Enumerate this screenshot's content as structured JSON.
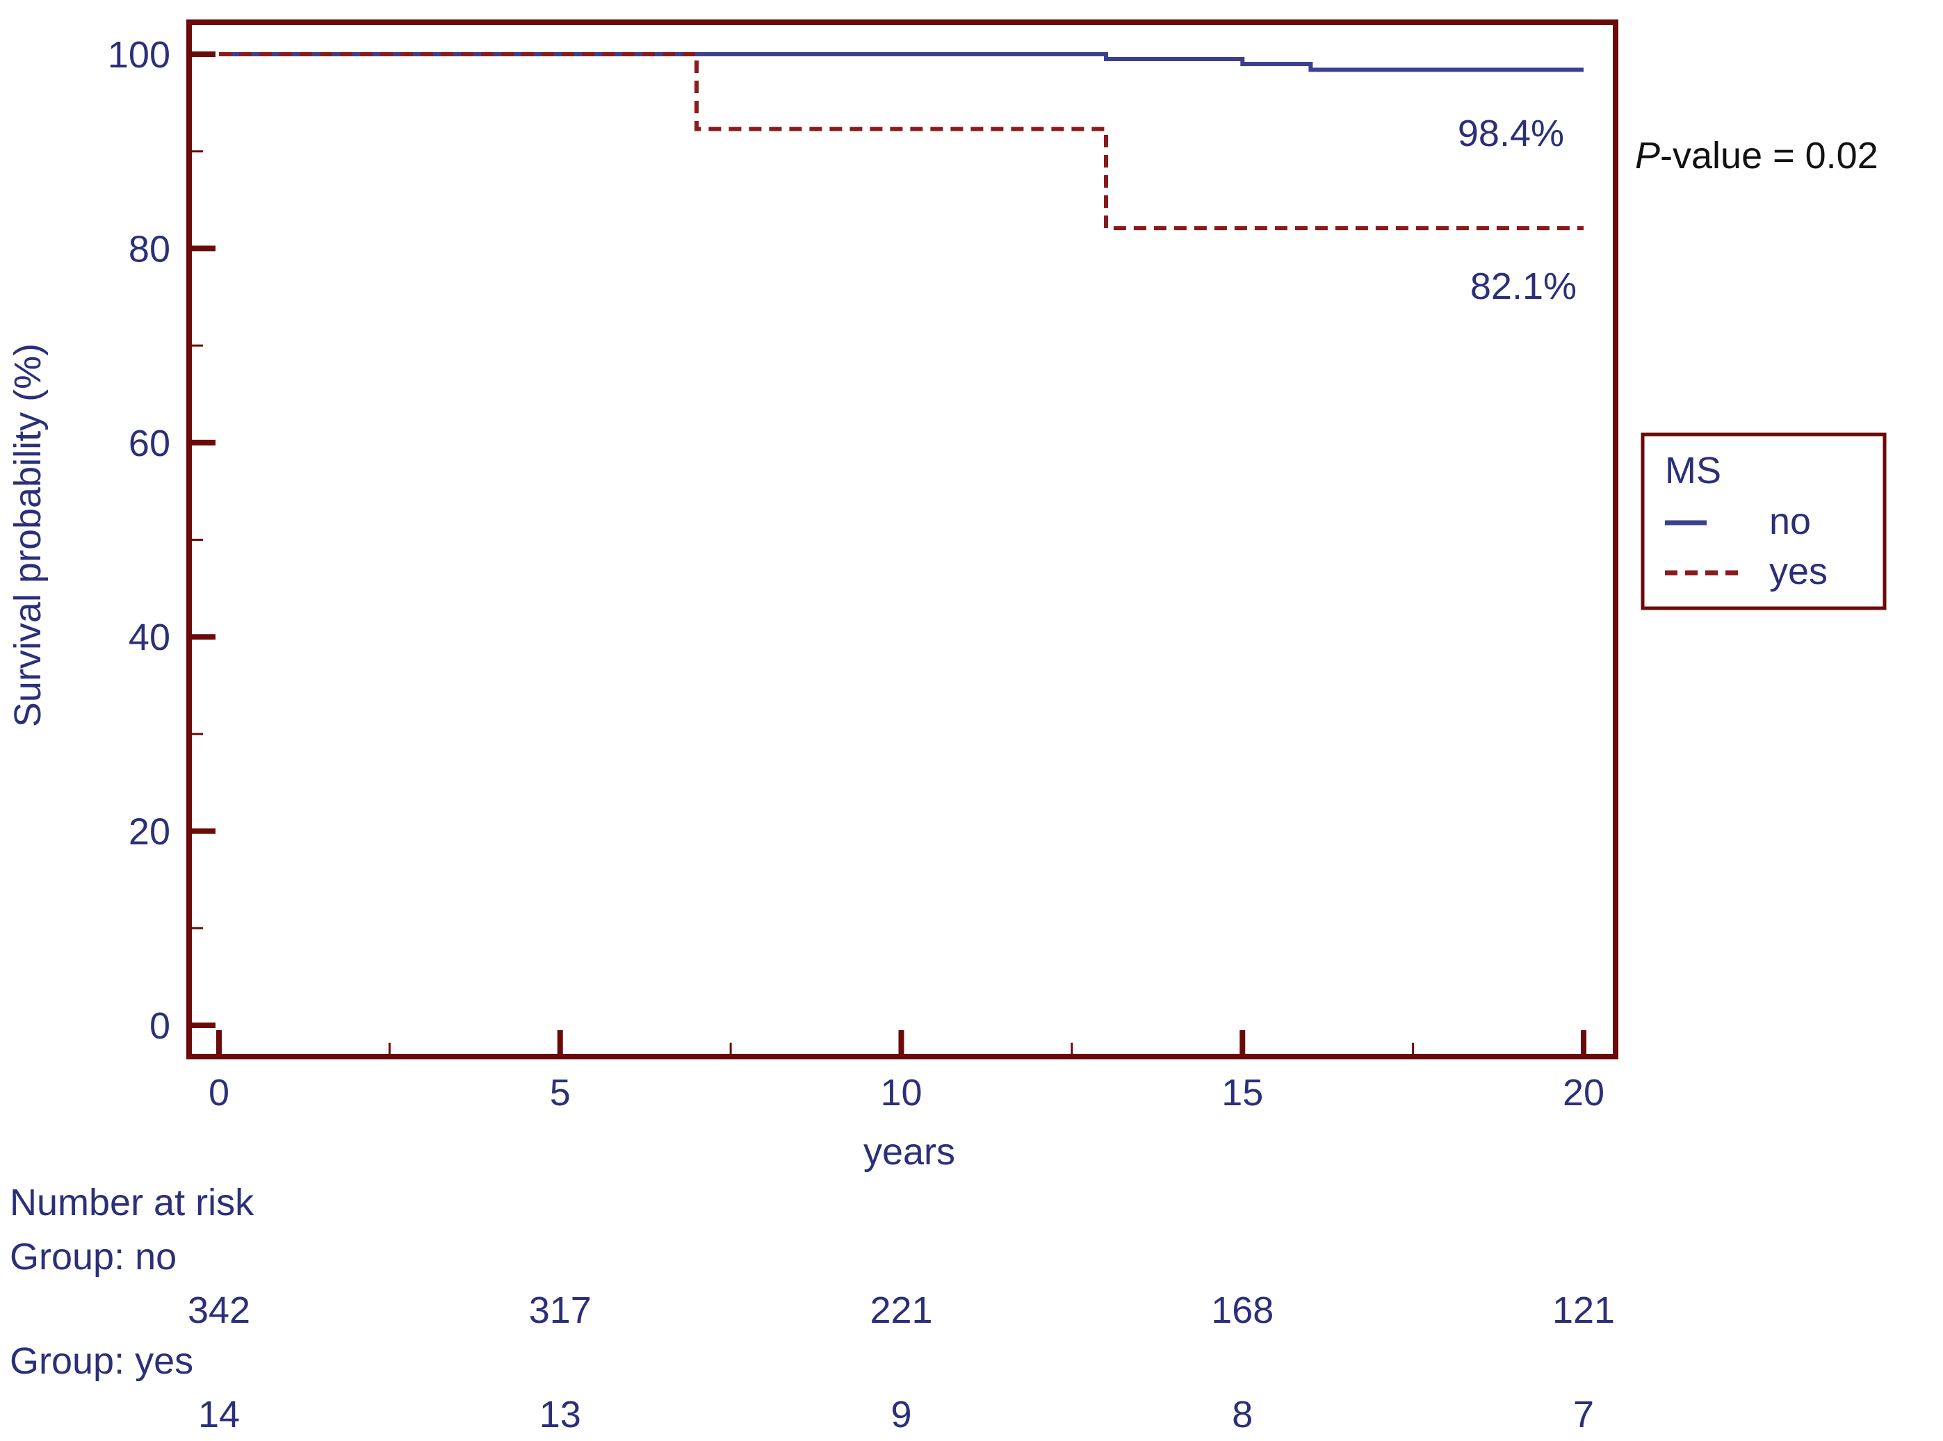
{
  "colors": {
    "frame": "#6b0a0a",
    "axis_text": "#2b2f7a",
    "series_no": "#3c3f8f",
    "series_yes": "#8b1a1a",
    "black": "#111111"
  },
  "chart_data": {
    "type": "line",
    "subtype": "kaplan-meier step curve",
    "xlabel": "years",
    "ylabel": "Survival probability (%)",
    "xlim": [
      0,
      20
    ],
    "ylim": [
      0,
      100
    ],
    "x_ticks": [
      0,
      5,
      10,
      15,
      20
    ],
    "y_ticks": [
      0,
      20,
      40,
      60,
      80,
      100
    ],
    "x_minor_ticks": [
      2.5,
      7.5,
      12.5,
      17.5
    ],
    "y_minor_ticks": [
      10,
      30,
      50,
      70,
      90
    ],
    "grid": false,
    "legend": {
      "title": "MS",
      "position": "right",
      "entries": [
        {
          "label": "no",
          "series": 0,
          "style": "solid"
        },
        {
          "label": "yes",
          "series": 1,
          "style": "dashed"
        }
      ]
    },
    "series": [
      {
        "name": "no",
        "style": "solid",
        "points": [
          [
            0,
            100
          ],
          [
            13,
            100
          ],
          [
            13,
            99.5
          ],
          [
            15,
            99.5
          ],
          [
            15,
            99.0
          ],
          [
            16,
            99.0
          ],
          [
            16,
            98.4
          ],
          [
            20,
            98.4
          ]
        ]
      },
      {
        "name": "yes",
        "style": "dashed",
        "points": [
          [
            0,
            100
          ],
          [
            7,
            100
          ],
          [
            7,
            92.3
          ],
          [
            13,
            92.3
          ],
          [
            13,
            82.1
          ],
          [
            20,
            82.1
          ]
        ]
      }
    ],
    "annotations": {
      "no_end_label": "98.4%",
      "yes_end_label": "82.1%",
      "p_value_prefix": "P",
      "p_value_rest": "-value = 0.02"
    },
    "risk_table": {
      "title": "Number at risk",
      "groups": [
        {
          "label": "Group: no",
          "values": [
            "342",
            "317",
            "221",
            "168",
            "121"
          ]
        },
        {
          "label": "Group: yes",
          "values": [
            "14",
            "13",
            "9",
            "8",
            "7"
          ]
        }
      ]
    }
  }
}
